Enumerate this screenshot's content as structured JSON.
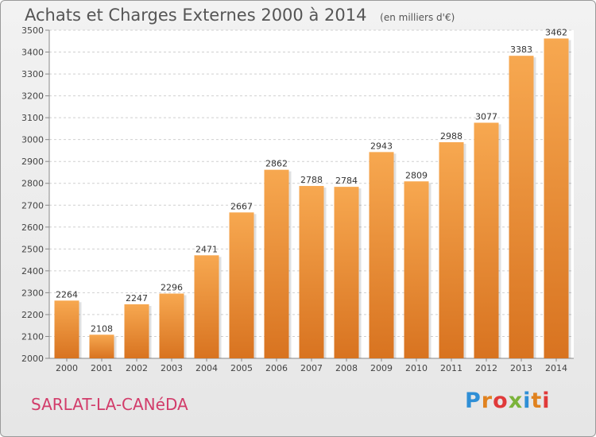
{
  "header": {
    "title": "Achats et Charges Externes 2000 à 2014",
    "unit": "(en milliers d'€)"
  },
  "footer": {
    "town": "SARLAT-LA-CANéDA",
    "brand": "Proxiti",
    "brand_colors": [
      "#2f8fd6",
      "#e0821f",
      "#e03a3a",
      "#7bb33a"
    ]
  },
  "colors": {
    "bar_light": "#f7a850",
    "bar_dark": "#d87320",
    "grid": "#d0d0d0",
    "plot_bg": "#ffffff"
  },
  "chart_data": {
    "type": "bar",
    "title": "Achats et Charges Externes 2000 à 2014",
    "subtitle": "(en milliers d'€)",
    "categories": [
      "2000",
      "2001",
      "2002",
      "2003",
      "2004",
      "2005",
      "2006",
      "2007",
      "2008",
      "2009",
      "2010",
      "2011",
      "2012",
      "2013",
      "2014"
    ],
    "values": [
      2264,
      2108,
      2247,
      2296,
      2471,
      2667,
      2862,
      2788,
      2784,
      2943,
      2809,
      2988,
      3077,
      3383,
      3462
    ],
    "data_labels": [
      "2264",
      "2108",
      "2247",
      "2296",
      "2471",
      "2667",
      "2862",
      "2788",
      "2784",
      "2943",
      "2809",
      "2988",
      "3077",
      "3383",
      "3462"
    ],
    "yticks": [
      "2000",
      "2100",
      "2200",
      "2300",
      "2400",
      "2500",
      "2600",
      "2700",
      "2800",
      "2900",
      "3000",
      "3100",
      "3200",
      "3300",
      "3400",
      "3500"
    ],
    "ylim": [
      2000,
      3500
    ],
    "xlabel": "",
    "ylabel": "",
    "grid": true,
    "legend": false
  }
}
